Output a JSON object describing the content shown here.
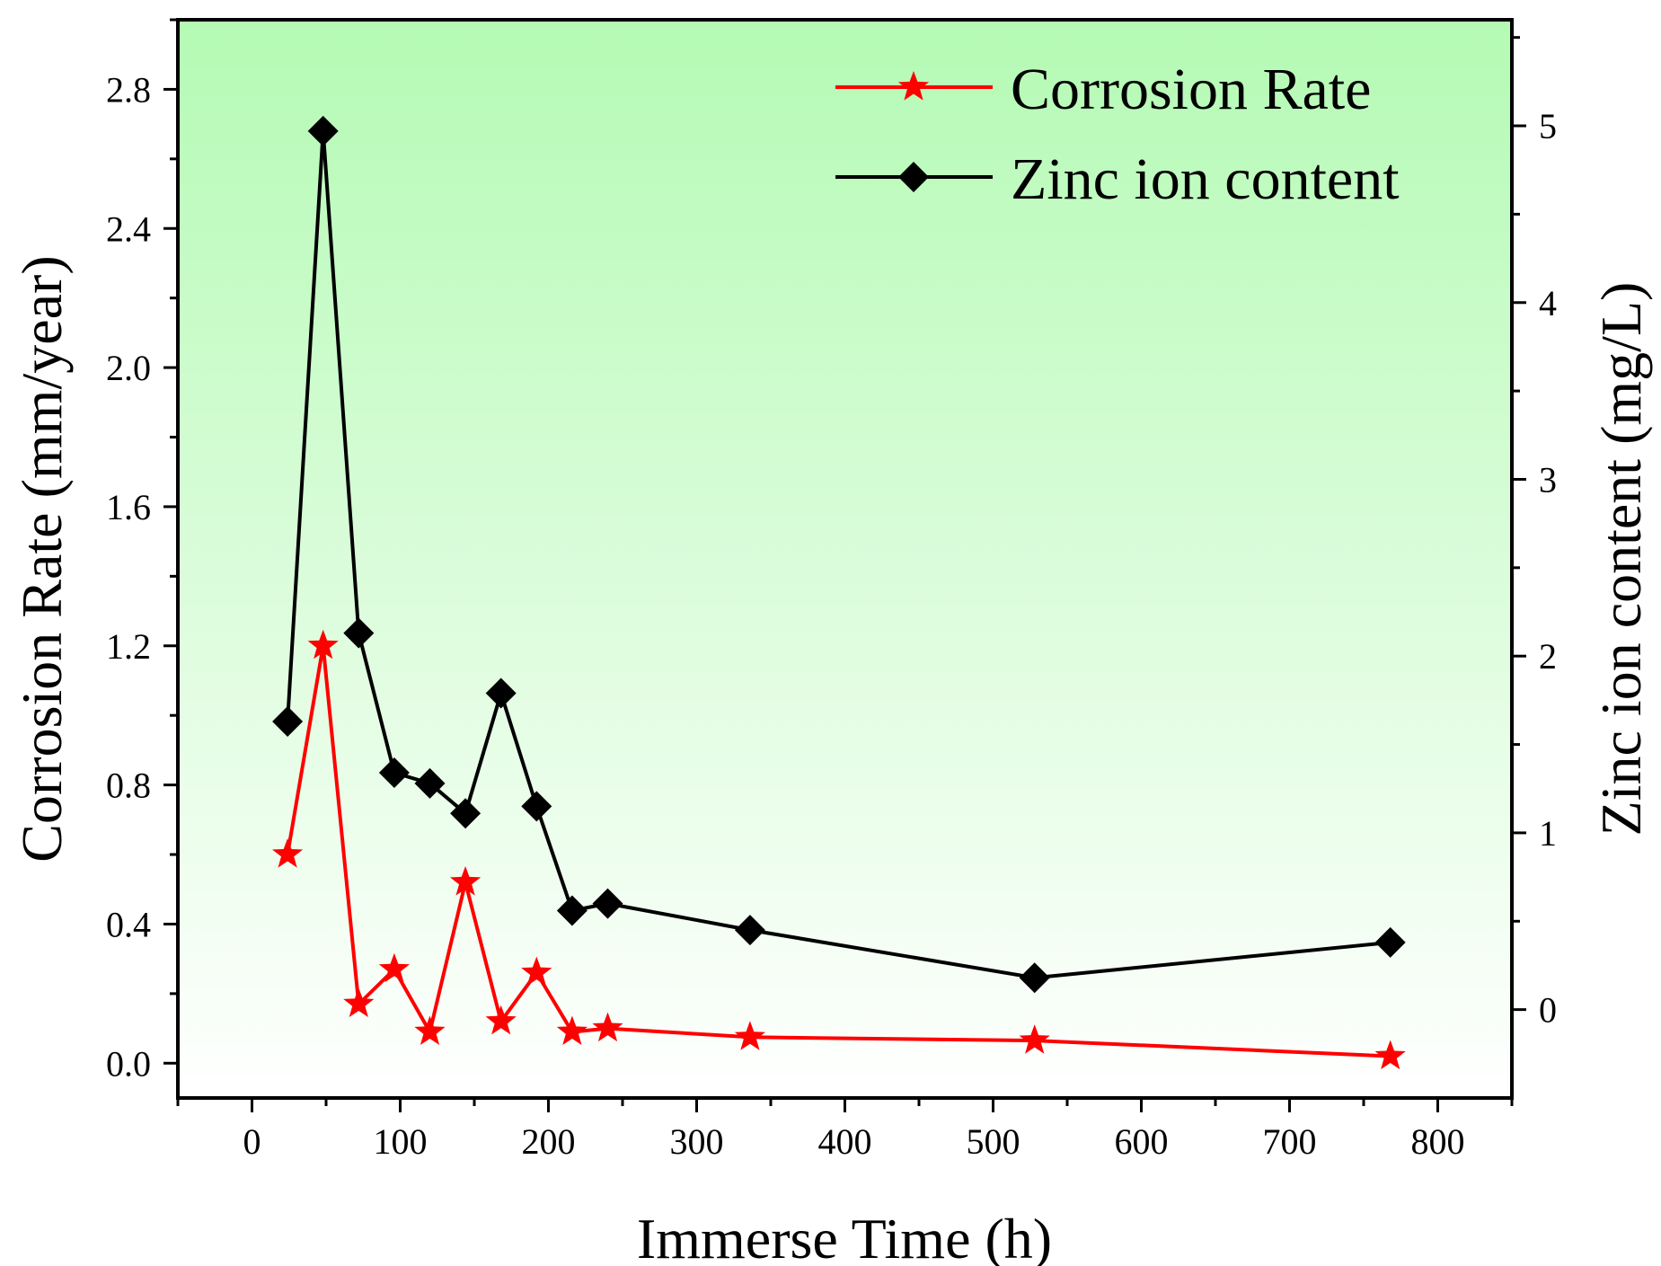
{
  "chart_data": {
    "type": "line",
    "xlabel": "Immerse Time (h)",
    "ylabel_left": "Corrosion Rate (mm/year)",
    "ylabel_right": "Zinc ion content (mg/L)",
    "xlim": [
      -50,
      850
    ],
    "ylim_left": [
      -0.1,
      3.0
    ],
    "ylim_right": [
      -0.5,
      5.6
    ],
    "x_ticks": [
      0,
      100,
      200,
      300,
      400,
      500,
      600,
      700,
      800
    ],
    "x_tick_labels": [
      "0",
      "100",
      "200",
      "300",
      "400",
      "500",
      "600",
      "700",
      "800"
    ],
    "y_left_ticks": [
      0.0,
      0.4,
      0.8,
      1.2,
      1.6,
      2.0,
      2.4,
      2.8
    ],
    "y_left_tick_labels": [
      "0.0",
      "0.4",
      "0.8",
      "1.2",
      "1.6",
      "2.0",
      "2.4",
      "2.8"
    ],
    "y_right_ticks": [
      0,
      1,
      2,
      3,
      4,
      5
    ],
    "y_right_tick_labels": [
      "0",
      "1",
      "2",
      "3",
      "4",
      "5"
    ],
    "background_gradient": [
      "#b4fab4",
      "#ffffff"
    ],
    "legend_position": "top-right",
    "series": [
      {
        "name": "Corrosion Rate",
        "axis": "left",
        "color": "#ff0000",
        "marker": "star",
        "x": [
          24,
          48,
          72,
          96,
          120,
          144,
          168,
          192,
          216,
          240,
          336,
          528,
          768
        ],
        "values": [
          0.6,
          1.2,
          0.17,
          0.27,
          0.09,
          0.52,
          0.12,
          0.26,
          0.09,
          0.1,
          0.075,
          0.065,
          0.02
        ]
      },
      {
        "name": "Zinc ion content",
        "axis": "right",
        "color": "#000000",
        "marker": "diamond",
        "x": [
          24,
          48,
          72,
          96,
          120,
          144,
          168,
          192,
          216,
          240,
          336,
          528,
          768
        ],
        "values": [
          1.63,
          4.97,
          2.13,
          1.34,
          1.28,
          1.11,
          1.79,
          1.15,
          0.56,
          0.6,
          0.45,
          0.18,
          0.38
        ]
      }
    ]
  }
}
